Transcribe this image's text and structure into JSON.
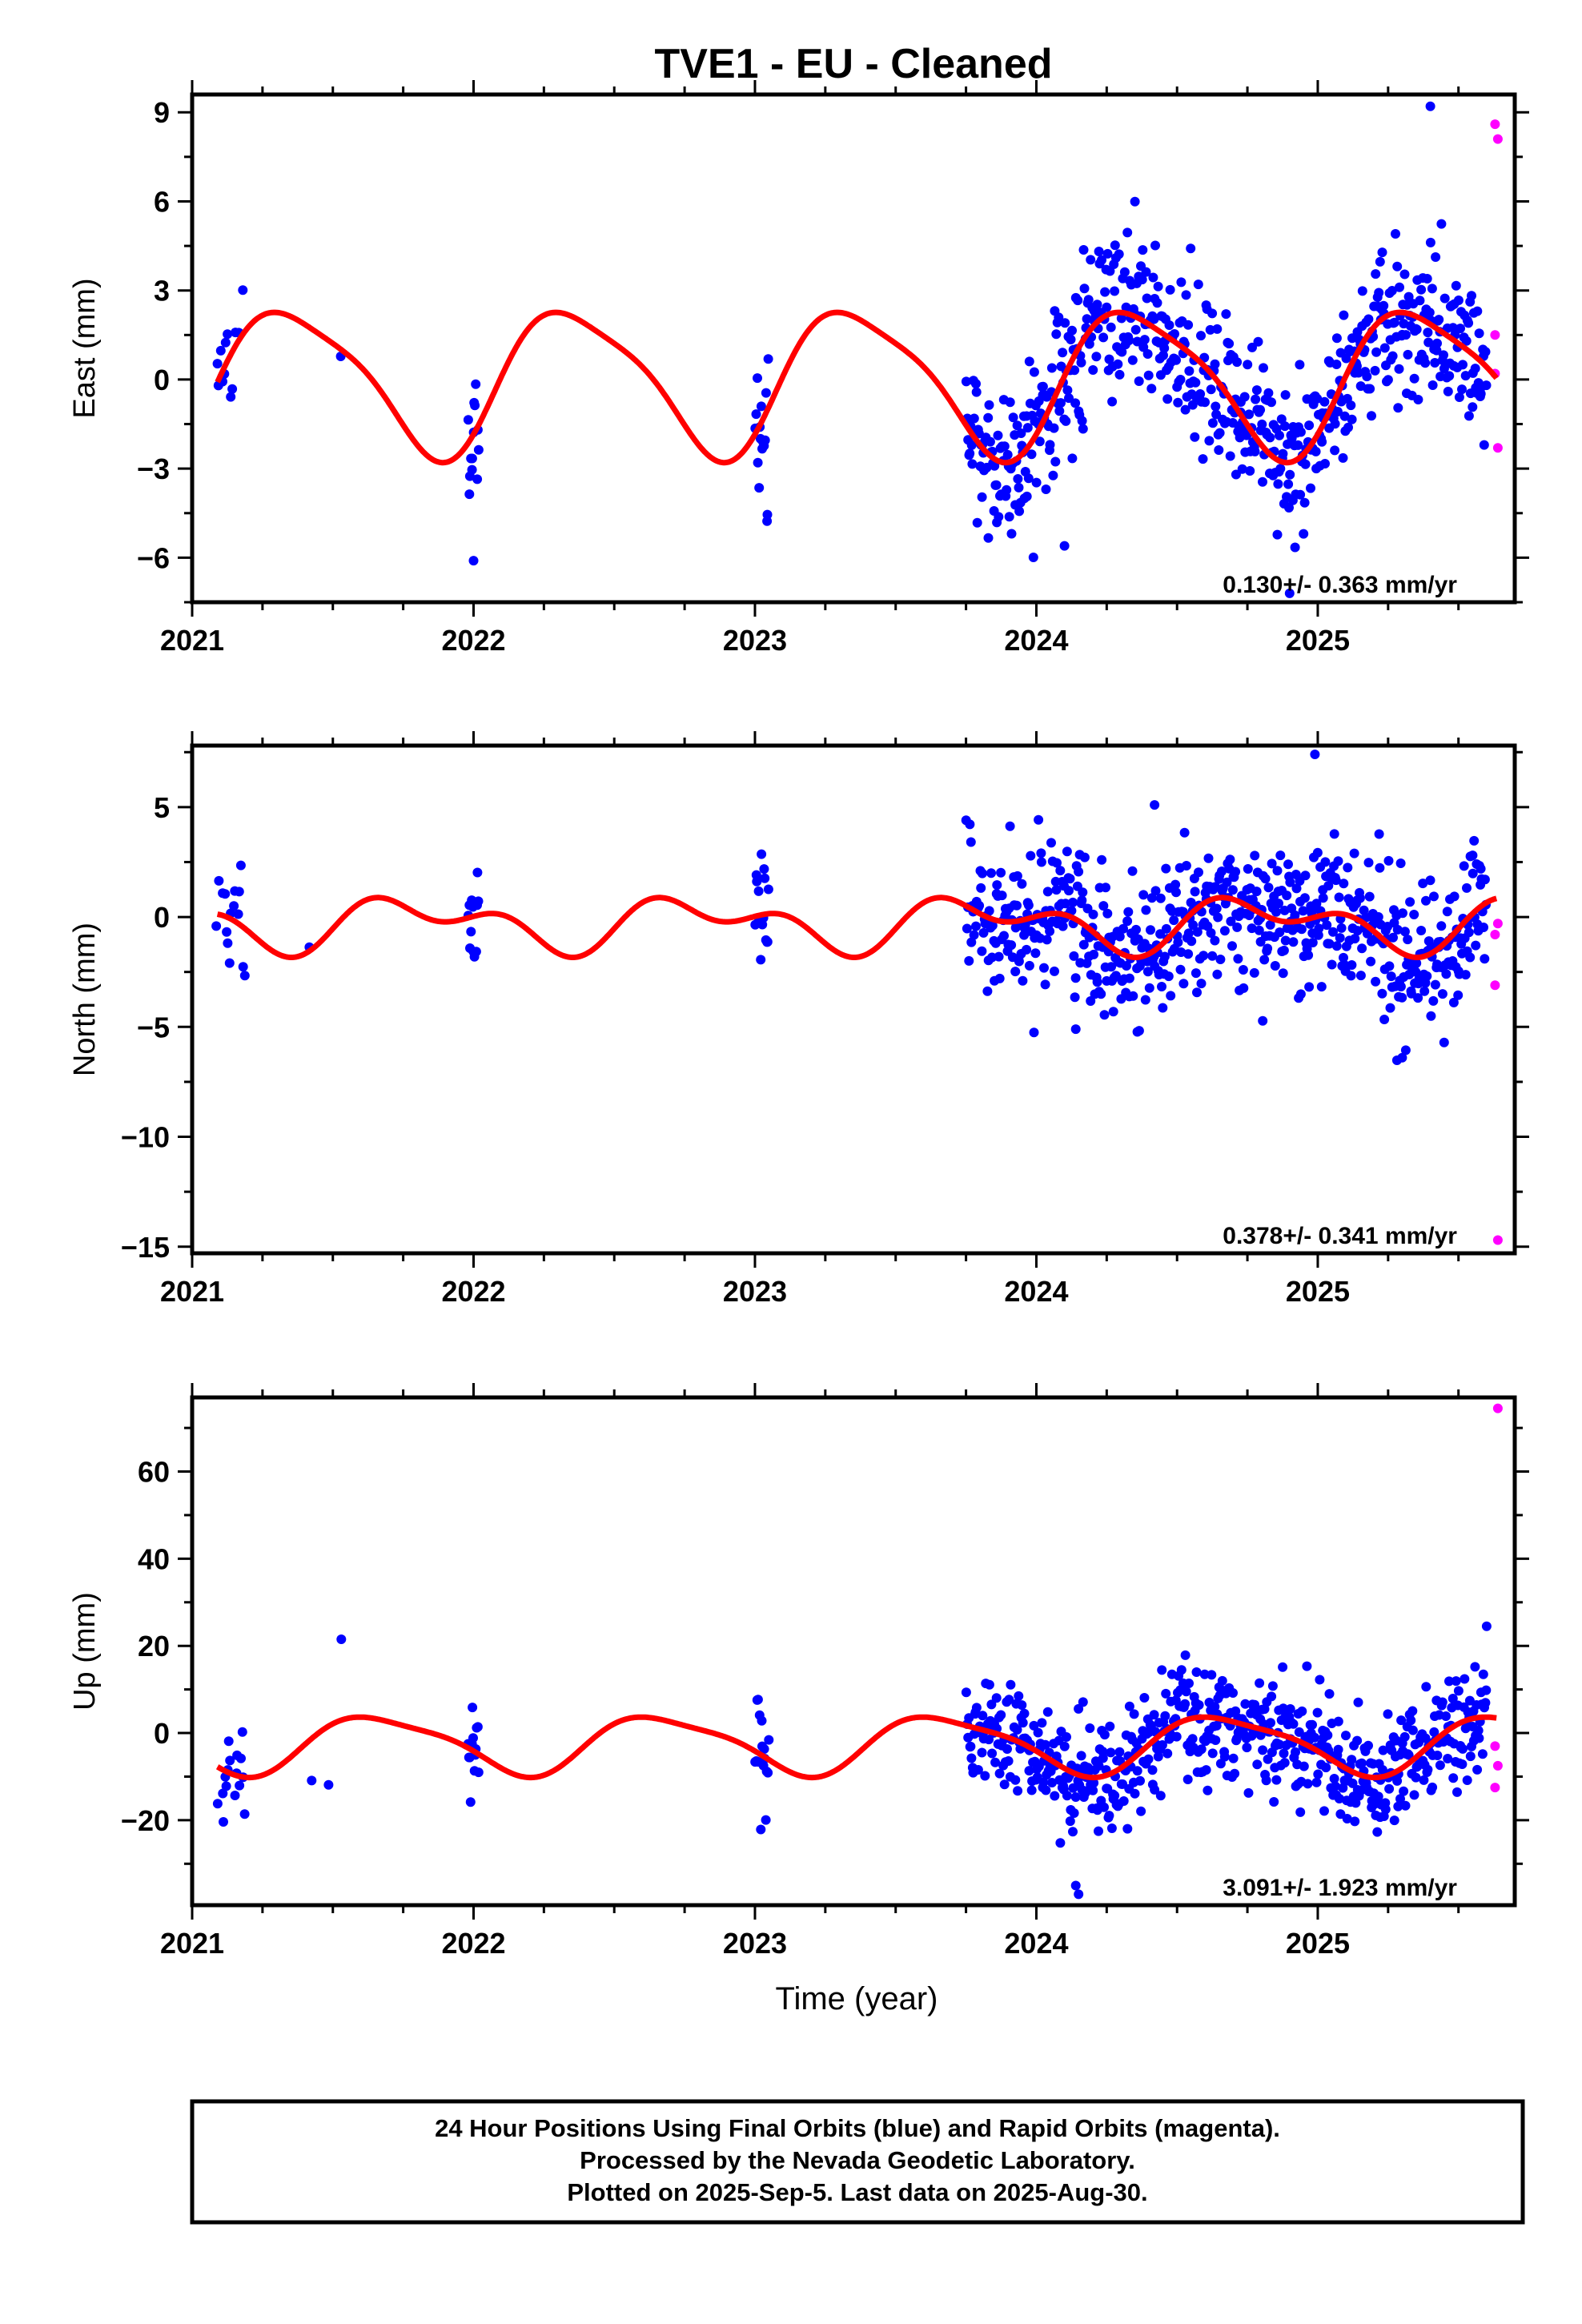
{
  "title": "TVE1  - EU - Cleaned",
  "xlabel": "Time (year)",
  "footer": [
    "24 Hour Positions Using Final Orbits (blue) and Rapid Orbits (magenta).",
    "Processed by the Nevada Geodetic Laboratory.",
    "Plotted on 2025-Sep-5. Last data on 2025-Aug-30."
  ],
  "colors": {
    "final": "#0000ff",
    "rapid": "#ff00ff",
    "model": "#ff0000",
    "frame": "#000000"
  },
  "chart_data": [
    {
      "type": "scatter",
      "ylabel": "East (mm)",
      "rate_text": "0.130+/- 0.363 mm/yr",
      "xlim": [
        2021.0,
        2025.7
      ],
      "ylim": [
        -7.5,
        9.6
      ],
      "xticks": [
        2021,
        2022,
        2023,
        2024,
        2025
      ],
      "yticks": [
        -6,
        -3,
        0,
        3,
        6,
        9
      ],
      "amp": 2.4,
      "annual_phase": 2021.11,
      "amp2": 0.5,
      "offset": 0.0,
      "noise": 1.3,
      "segments": [
        [
          2021.08,
          2021.19,
          0.5
        ],
        [
          2021.4,
          2021.6,
          0.1
        ],
        [
          2021.98,
          2022.02,
          1.0
        ],
        [
          2023.0,
          2023.05,
          1.0
        ],
        [
          2023.75,
          2025.6,
          1.0
        ]
      ],
      "outliers": [
        [
          2024.1,
          -5.6
        ],
        [
          2022.0,
          -6.1
        ],
        [
          2024.9,
          -7.2
        ],
        [
          2025.4,
          9.2
        ]
      ],
      "rapid": [
        [
          2025.63,
          8.6
        ],
        [
          2025.64,
          8.1
        ],
        [
          2025.63,
          1.5
        ],
        [
          2025.64,
          -2.3
        ],
        [
          2025.63,
          0.2
        ]
      ]
    },
    {
      "type": "scatter",
      "ylabel": "North (mm)",
      "rate_text": "0.378+/- 0.341 mm/yr",
      "xlim": [
        2021.0,
        2025.7
      ],
      "ylim": [
        -15.3,
        7.8
      ],
      "xticks": [
        2021,
        2022,
        2023,
        2024,
        2025
      ],
      "yticks": [
        -15,
        -10,
        -5,
        0,
        5
      ],
      "amp": 0.9,
      "annual_phase": 2021.55,
      "amp2": 0.7,
      "offset": -0.3,
      "noise": 1.6,
      "segments": [
        [
          2021.08,
          2021.19,
          0.6
        ],
        [
          2021.4,
          2021.6,
          0.1
        ],
        [
          2021.98,
          2022.02,
          1.0
        ],
        [
          2023.0,
          2023.05,
          1.0
        ],
        [
          2023.75,
          2025.6,
          1.0
        ]
      ],
      "outliers": [
        [
          2024.99,
          7.4
        ],
        [
          2024.42,
          5.1
        ],
        [
          2025.3,
          -6.4
        ],
        [
          2024.14,
          -5.1
        ]
      ],
      "rapid": [
        [
          2025.64,
          -14.7
        ],
        [
          2025.63,
          -3.1
        ],
        [
          2025.64,
          -0.3
        ],
        [
          2025.63,
          -0.8
        ]
      ]
    },
    {
      "type": "scatter",
      "ylabel": "Up (mm)",
      "rate_text": "3.091+/- 1.923 mm/yr",
      "xlim": [
        2021.0,
        2025.7
      ],
      "ylim": [
        -39.5,
        77
      ],
      "xticks": [
        2021,
        2022,
        2023,
        2024,
        2025
      ],
      "yticks": [
        -20,
        0,
        20,
        40,
        60
      ],
      "amp": 6.5,
      "annual_phase": 2021.42,
      "amp2": 1.5,
      "offset": -2.5,
      "noise": 6.5,
      "segments": [
        [
          2021.08,
          2021.19,
          0.7
        ],
        [
          2021.4,
          2021.6,
          0.15
        ],
        [
          2021.98,
          2022.02,
          1.0
        ],
        [
          2023.0,
          2023.05,
          1.0
        ],
        [
          2023.75,
          2025.6,
          1.0
        ]
      ],
      "outliers": [
        [
          2024.15,
          -37
        ],
        [
          2024.14,
          -35
        ],
        [
          2021.53,
          21.5
        ],
        [
          2025.6,
          24.5
        ]
      ],
      "rapid": [
        [
          2025.64,
          74.5
        ],
        [
          2025.63,
          -3
        ],
        [
          2025.64,
          -7.5
        ],
        [
          2025.63,
          -12.5
        ]
      ]
    }
  ]
}
